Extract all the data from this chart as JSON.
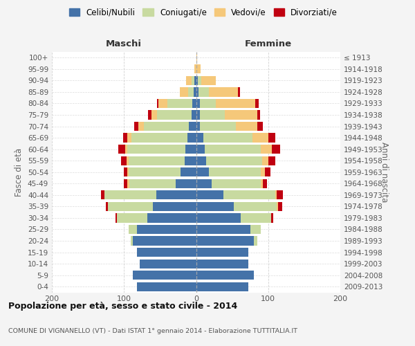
{
  "age_groups": [
    "0-4",
    "5-9",
    "10-14",
    "15-19",
    "20-24",
    "25-29",
    "30-34",
    "35-39",
    "40-44",
    "45-49",
    "50-54",
    "55-59",
    "60-64",
    "65-69",
    "70-74",
    "75-79",
    "80-84",
    "85-89",
    "90-94",
    "95-99",
    "100+"
  ],
  "birth_years": [
    "2009-2013",
    "2004-2008",
    "1999-2003",
    "1994-1998",
    "1989-1993",
    "1984-1988",
    "1979-1983",
    "1974-1978",
    "1969-1973",
    "1964-1968",
    "1959-1963",
    "1954-1958",
    "1949-1953",
    "1944-1948",
    "1939-1943",
    "1934-1938",
    "1929-1933",
    "1924-1928",
    "1919-1923",
    "1914-1918",
    "≤ 1913"
  ],
  "maschi": {
    "celibi": [
      82,
      88,
      78,
      82,
      88,
      82,
      68,
      60,
      55,
      28,
      22,
      16,
      15,
      12,
      10,
      6,
      5,
      3,
      2,
      0,
      0
    ],
    "coniugati": [
      0,
      0,
      0,
      0,
      3,
      12,
      42,
      62,
      72,
      65,
      72,
      78,
      80,
      78,
      62,
      48,
      35,
      8,
      4,
      0,
      0
    ],
    "vedovi": [
      0,
      0,
      0,
      0,
      0,
      0,
      0,
      0,
      0,
      2,
      1,
      2,
      3,
      5,
      8,
      8,
      12,
      12,
      8,
      2,
      0
    ],
    "divorziati": [
      0,
      0,
      0,
      0,
      0,
      0,
      2,
      3,
      5,
      5,
      5,
      8,
      10,
      6,
      6,
      5,
      2,
      0,
      0,
      0,
      0
    ]
  },
  "femmine": {
    "nubili": [
      72,
      80,
      72,
      72,
      80,
      75,
      62,
      52,
      38,
      22,
      18,
      14,
      12,
      10,
      5,
      5,
      5,
      3,
      2,
      0,
      0
    ],
    "coniugate": [
      0,
      0,
      0,
      0,
      5,
      15,
      42,
      60,
      72,
      68,
      72,
      78,
      78,
      68,
      50,
      35,
      22,
      15,
      5,
      0,
      0
    ],
    "vedove": [
      0,
      0,
      0,
      0,
      0,
      0,
      0,
      2,
      2,
      3,
      5,
      8,
      15,
      22,
      30,
      45,
      55,
      40,
      20,
      6,
      1
    ],
    "divorziate": [
      0,
      0,
      0,
      0,
      0,
      0,
      3,
      5,
      8,
      5,
      8,
      10,
      12,
      10,
      8,
      4,
      5,
      3,
      0,
      0,
      0
    ]
  },
  "colors": {
    "celibi": "#4472a8",
    "coniugati": "#c8daa0",
    "vedovi": "#f5c87a",
    "divorziati": "#c00010"
  },
  "xlim": 200,
  "title": "Popolazione per età, sesso e stato civile - 2014",
  "subtitle": "COMUNE DI VIGNANELLO (VT) - Dati ISTAT 1° gennaio 2014 - Elaborazione TUTTITALIA.IT",
  "ylabel_left": "Fasce di età",
  "ylabel_right": "Anni di nascita",
  "xlabel_maschi": "Maschi",
  "xlabel_femmine": "Femmine",
  "bg_color": "#f4f4f4",
  "plot_bg_color": "#ffffff"
}
